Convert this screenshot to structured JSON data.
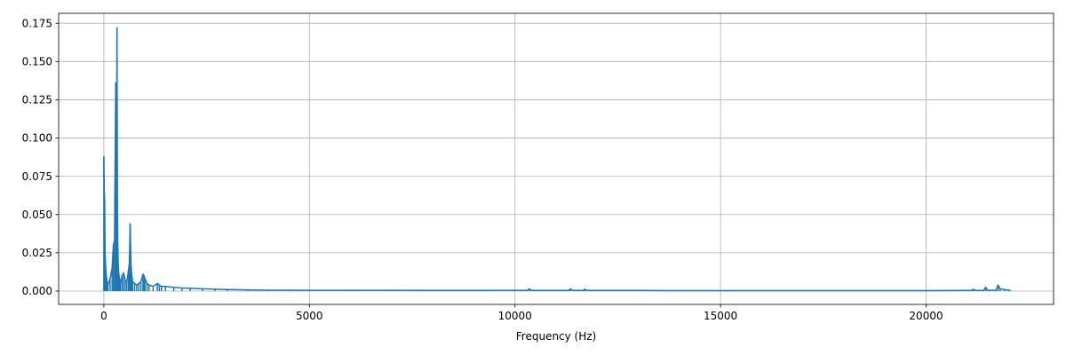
{
  "chart_data": {
    "type": "line",
    "title": "",
    "xlabel": "Frequency (Hz)",
    "ylabel": "",
    "xlim": [
      -1100,
      23100
    ],
    "ylim": [
      -0.0087,
      0.1815
    ],
    "grid": true,
    "x_ticks": [
      0,
      5000,
      10000,
      15000,
      20000
    ],
    "x_tick_labels": [
      "0",
      "5000",
      "10000",
      "15000",
      "20000"
    ],
    "y_ticks": [
      0.0,
      0.025,
      0.05,
      0.075,
      0.1,
      0.125,
      0.15,
      0.175
    ],
    "y_tick_labels": [
      "0.000",
      "0.025",
      "0.050",
      "0.075",
      "0.100",
      "0.125",
      "0.150",
      "0.175"
    ],
    "series": [
      {
        "color": "#1f77b4",
        "x": [
          0,
          10,
          20,
          30,
          40,
          50,
          60,
          80,
          100,
          150,
          200,
          230,
          260,
          290,
          310,
          320,
          330,
          340,
          350,
          360,
          380,
          400,
          440,
          480,
          520,
          560,
          600,
          620,
          640,
          660,
          680,
          700,
          750,
          800,
          850,
          900,
          950,
          980,
          1000,
          1050,
          1100,
          1200,
          1300,
          1350,
          1400,
          1500,
          1700,
          1900,
          2100,
          2400,
          2700,
          3000,
          3500,
          4000,
          4500,
          5000,
          6000,
          7000,
          8000,
          9000,
          10000,
          10300,
          10350,
          10400,
          11000,
          11300,
          11350,
          11400,
          11650,
          11700,
          11750,
          12000,
          13000,
          14000,
          15000,
          16000,
          17000,
          18000,
          19000,
          20000,
          21000,
          21100,
          21150,
          21200,
          21400,
          21450,
          21500,
          21700,
          21750,
          21800,
          21900,
          22050
        ],
        "y": [
          0.088,
          0.065,
          0.059,
          0.025,
          0.018,
          0.014,
          0.01,
          0.006,
          0.004,
          0.008,
          0.015,
          0.03,
          0.033,
          0.136,
          0.09,
          0.172,
          0.055,
          0.03,
          0.018,
          0.012,
          0.008,
          0.005,
          0.01,
          0.012,
          0.007,
          0.006,
          0.014,
          0.018,
          0.044,
          0.017,
          0.01,
          0.006,
          0.005,
          0.004,
          0.005,
          0.006,
          0.011,
          0.01,
          0.008,
          0.005,
          0.004,
          0.003,
          0.005,
          0.004,
          0.003,
          0.003,
          0.0025,
          0.002,
          0.0018,
          0.0015,
          0.0012,
          0.001,
          0.0008,
          0.0006,
          0.0006,
          0.0005,
          0.0005,
          0.0005,
          0.0004,
          0.0004,
          0.0005,
          0.0004,
          0.0015,
          0.0004,
          0.0004,
          0.0004,
          0.0015,
          0.0004,
          0.0004,
          0.0012,
          0.0004,
          0.0004,
          0.0004,
          0.0003,
          0.0003,
          0.0003,
          0.0003,
          0.0003,
          0.0003,
          0.0003,
          0.0004,
          0.0004,
          0.0012,
          0.0004,
          0.0004,
          0.0025,
          0.0005,
          0.0005,
          0.004,
          0.0015,
          0.001,
          0.0005
        ]
      }
    ]
  }
}
